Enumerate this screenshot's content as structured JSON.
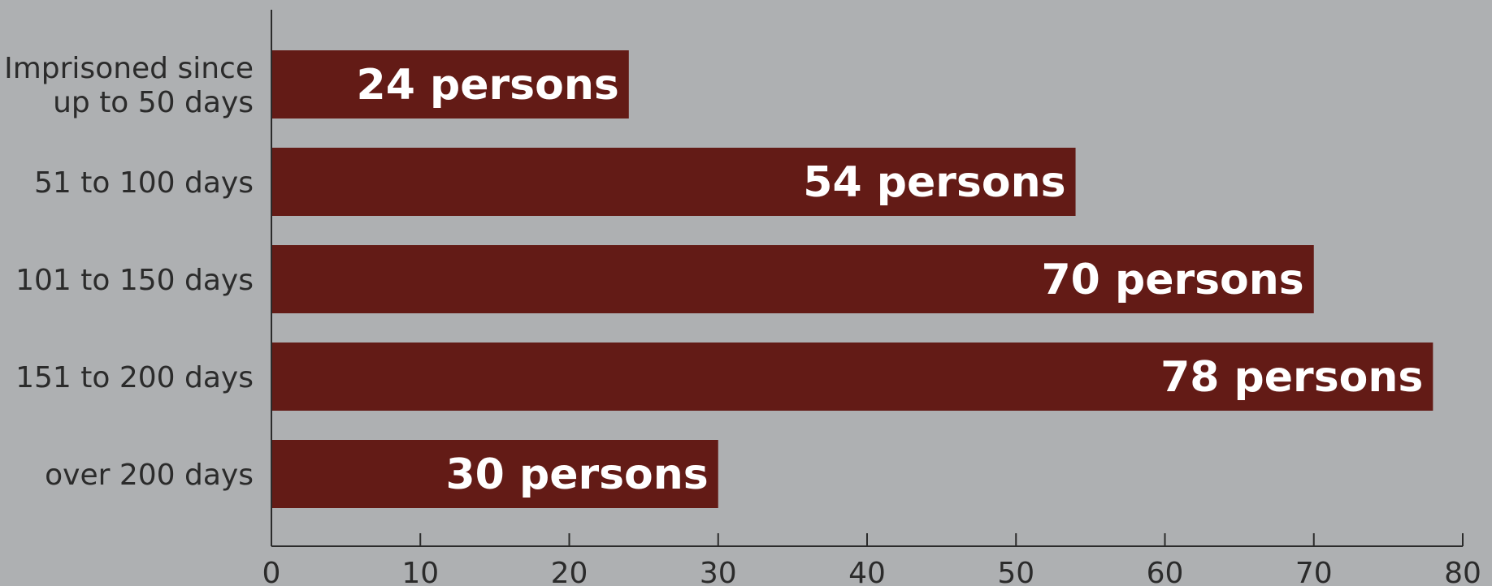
{
  "chart_data": {
    "type": "bar",
    "orientation": "horizontal",
    "categories": [
      [
        "Imprisoned since",
        "up to 50 days"
      ],
      [
        "51 to 100 days"
      ],
      [
        "101 to 150 days"
      ],
      [
        "151 to 200 days"
      ],
      [
        "over 200 days"
      ]
    ],
    "values": [
      24,
      54,
      70,
      78,
      30
    ],
    "data_labels": [
      "24 persons",
      "54 persons",
      "70 persons",
      "78 persons",
      "30 persons"
    ],
    "x_ticks": [
      "0",
      "10",
      "20",
      "30",
      "40",
      "50",
      "60",
      "70",
      "80"
    ],
    "xlim": [
      0,
      80
    ],
    "grid": false,
    "colors": {
      "background": "#aeb0b2",
      "bar": "#631b16",
      "bar_label": "#ffffff",
      "axis": "#2b2b2b",
      "text": "#2b2b2b"
    }
  }
}
